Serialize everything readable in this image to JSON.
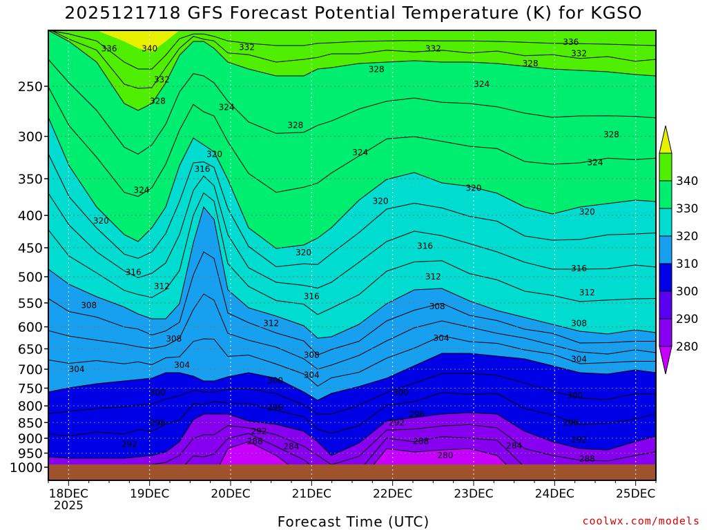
{
  "chart_data": {
    "type": "heatmap",
    "title": "2025121718 GFS Forecast Potential Temperature (K) for KGSO",
    "xlabel": "Forecast Time (UTC)",
    "ylabel": "",
    "x_tick_labels": [
      "18DEC",
      "19DEC",
      "20DEC",
      "21DEC",
      "22DEC",
      "23DEC",
      "24DEC",
      "25DEC"
    ],
    "x_year_label": "2025",
    "y_ticks": [
      250,
      300,
      350,
      400,
      450,
      500,
      550,
      600,
      650,
      700,
      750,
      800,
      850,
      900,
      950,
      1000
    ],
    "y_axis": "pressure (hPa), inverted log scale",
    "ylim": [
      1000,
      200
    ],
    "colorbar": {
      "ticks": [
        280,
        290,
        300,
        310,
        320,
        330,
        340
      ],
      "colors": [
        "#c800ff",
        "#8800f0",
        "#5a00f0",
        "#0000e6",
        "#0050f0",
        "#18a0f0",
        "#00dcd0",
        "#00ee70",
        "#50ee00",
        "#e6f000"
      ]
    },
    "contour_labels": [
      {
        "value": 336,
        "day": 18.5,
        "p": 218
      },
      {
        "value": 340,
        "day": 19.0,
        "p": 218
      },
      {
        "value": 332,
        "day": 20.2,
        "p": 217
      },
      {
        "value": 332,
        "day": 22.5,
        "p": 218
      },
      {
        "value": 336,
        "day": 24.2,
        "p": 213
      },
      {
        "value": 332,
        "day": 24.3,
        "p": 222
      },
      {
        "value": 332,
        "day": 19.15,
        "p": 244
      },
      {
        "value": 328,
        "day": 19.1,
        "p": 264
      },
      {
        "value": 324,
        "day": 19.95,
        "p": 270
      },
      {
        "value": 328,
        "day": 20.8,
        "p": 288
      },
      {
        "value": 328,
        "day": 21.8,
        "p": 235
      },
      {
        "value": 328,
        "day": 23.7,
        "p": 230
      },
      {
        "value": 324,
        "day": 23.1,
        "p": 248
      },
      {
        "value": 324,
        "day": 21.6,
        "p": 318
      },
      {
        "value": 328,
        "day": 24.7,
        "p": 298
      },
      {
        "value": 324,
        "day": 24.5,
        "p": 330
      },
      {
        "value": 320,
        "day": 19.8,
        "p": 320
      },
      {
        "value": 316,
        "day": 19.65,
        "p": 338
      },
      {
        "value": 324,
        "day": 18.9,
        "p": 365
      },
      {
        "value": 320,
        "day": 21.85,
        "p": 380
      },
      {
        "value": 320,
        "day": 23.0,
        "p": 362
      },
      {
        "value": 320,
        "day": 24.4,
        "p": 395
      },
      {
        "value": 320,
        "day": 18.4,
        "p": 408
      },
      {
        "value": 320,
        "day": 20.9,
        "p": 458
      },
      {
        "value": 316,
        "day": 22.4,
        "p": 447
      },
      {
        "value": 316,
        "day": 24.3,
        "p": 485
      },
      {
        "value": 316,
        "day": 18.8,
        "p": 492
      },
      {
        "value": 312,
        "day": 19.15,
        "p": 518
      },
      {
        "value": 312,
        "day": 22.5,
        "p": 500
      },
      {
        "value": 312,
        "day": 24.4,
        "p": 530
      },
      {
        "value": 316,
        "day": 21.0,
        "p": 537
      },
      {
        "value": 308,
        "day": 18.25,
        "p": 555
      },
      {
        "value": 312,
        "day": 20.5,
        "p": 592
      },
      {
        "value": 308,
        "day": 22.55,
        "p": 557
      },
      {
        "value": 308,
        "day": 24.3,
        "p": 592
      },
      {
        "value": 304,
        "day": 22.6,
        "p": 625
      },
      {
        "value": 308,
        "day": 19.3,
        "p": 627
      },
      {
        "value": 308,
        "day": 21.0,
        "p": 665
      },
      {
        "value": 304,
        "day": 19.4,
        "p": 690
      },
      {
        "value": 304,
        "day": 18.1,
        "p": 700
      },
      {
        "value": 304,
        "day": 21.0,
        "p": 715
      },
      {
        "value": 304,
        "day": 24.3,
        "p": 675
      },
      {
        "value": 300,
        "day": 19.1,
        "p": 762
      },
      {
        "value": 300,
        "day": 20.55,
        "p": 730
      },
      {
        "value": 300,
        "day": 22.1,
        "p": 762
      },
      {
        "value": 300,
        "day": 24.25,
        "p": 770
      },
      {
        "value": 296,
        "day": 20.55,
        "p": 805
      },
      {
        "value": 296,
        "day": 19.1,
        "p": 850
      },
      {
        "value": 296,
        "day": 22.3,
        "p": 825
      },
      {
        "value": 296,
        "day": 24.2,
        "p": 850
      },
      {
        "value": 292,
        "day": 22.05,
        "p": 850
      },
      {
        "value": 292,
        "day": 20.35,
        "p": 878
      },
      {
        "value": 292,
        "day": 18.75,
        "p": 920
      },
      {
        "value": 292,
        "day": 24.3,
        "p": 905
      },
      {
        "value": 288,
        "day": 20.3,
        "p": 910
      },
      {
        "value": 288,
        "day": 22.35,
        "p": 910
      },
      {
        "value": 284,
        "day": 20.75,
        "p": 928
      },
      {
        "value": 284,
        "day": 23.5,
        "p": 925
      },
      {
        "value": 280,
        "day": 22.65,
        "p": 958
      },
      {
        "value": 288,
        "day": 24.4,
        "p": 970
      }
    ]
  },
  "footer": {
    "credit": "coolwx.com/models"
  }
}
